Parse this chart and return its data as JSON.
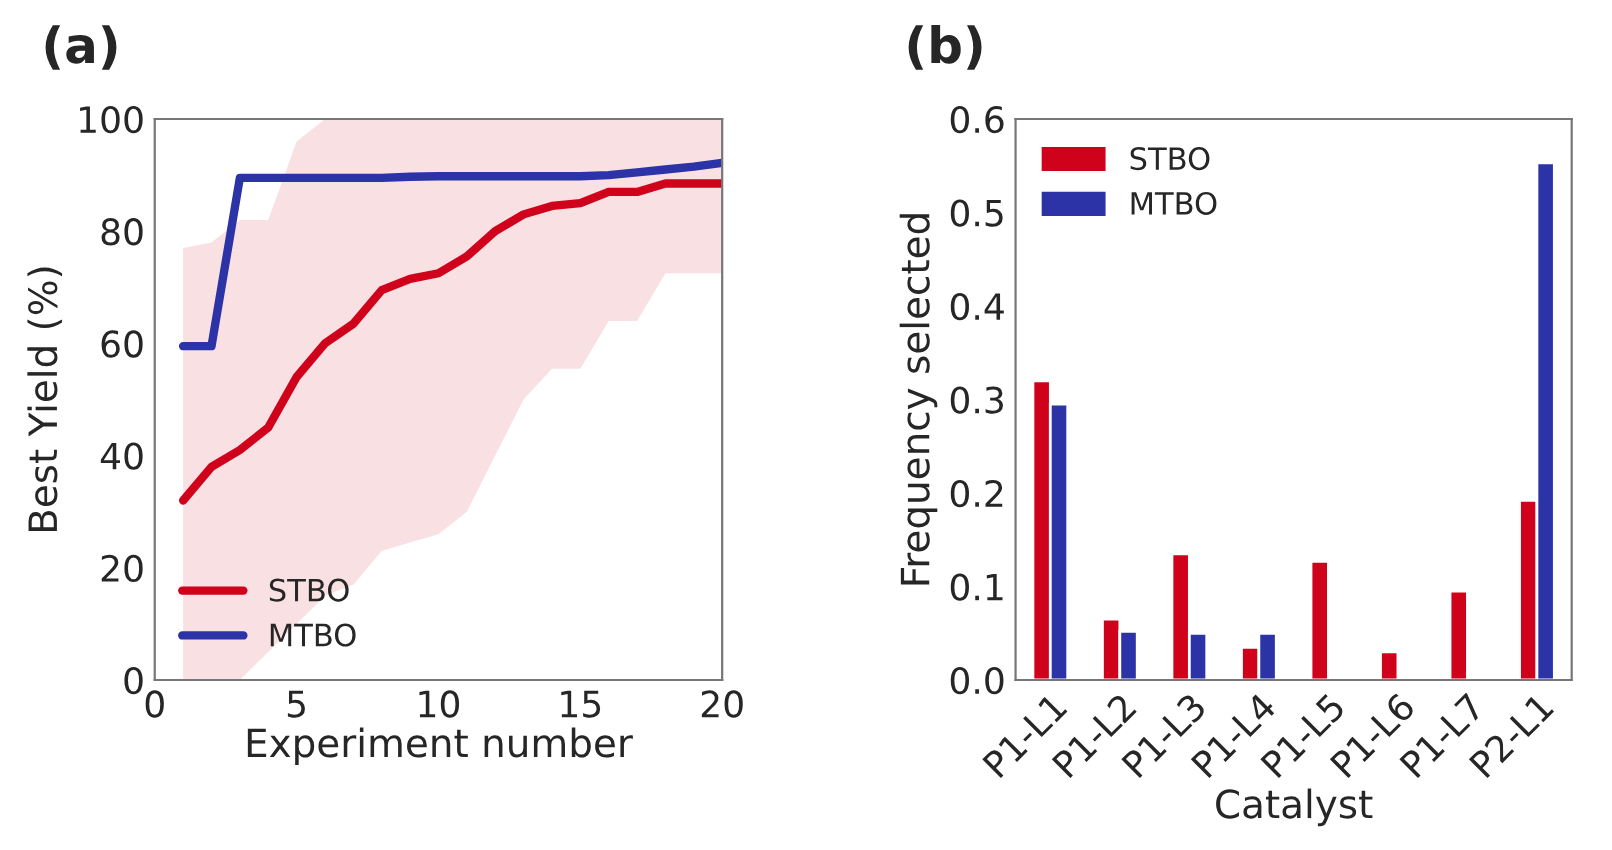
{
  "chart_data": [
    {
      "type": "line",
      "title": "(a)",
      "xlabel": "Experiment number",
      "ylabel": "Best Yield (%)",
      "x": [
        1,
        2,
        3,
        4,
        5,
        6,
        7,
        8,
        9,
        10,
        11,
        12,
        13,
        14,
        15,
        16,
        17,
        18,
        19,
        20
      ],
      "xlim": [
        0,
        20
      ],
      "ylim": [
        0,
        100
      ],
      "xticks": [
        0,
        5,
        10,
        15,
        20
      ],
      "yticks": [
        0,
        20,
        40,
        60,
        80,
        100
      ],
      "grid": false,
      "legend": "bottom left",
      "marker": "none",
      "line_style": "solid",
      "series": [
        {
          "name": "STBO",
          "color": "#d0021b",
          "values": [
            32,
            38,
            41,
            45,
            54,
            60,
            63.5,
            69.5,
            71.5,
            72.5,
            75.5,
            80,
            83,
            84.5,
            85,
            87,
            87,
            88.5,
            88.5,
            88.5
          ],
          "lower": [
            0,
            0,
            0,
            5,
            10,
            15,
            17,
            23,
            24.5,
            26,
            30,
            40,
            50,
            55.5,
            55.5,
            64,
            64,
            72.5,
            72.5,
            72.5
          ],
          "upper": [
            77,
            78,
            82,
            82,
            96,
            100,
            100,
            100,
            100,
            100,
            100,
            100,
            100,
            100,
            100,
            100,
            100,
            100,
            100,
            100
          ]
        },
        {
          "name": "MTBO",
          "color": "#2b33a6",
          "values": [
            59.5,
            59.5,
            89.5,
            89.5,
            89.5,
            89.5,
            89.5,
            89.5,
            89.7,
            89.8,
            89.8,
            89.8,
            89.8,
            89.8,
            89.8,
            90,
            90.5,
            91,
            91.5,
            92.2
          ]
        }
      ]
    },
    {
      "type": "bar",
      "title": "(b)",
      "xlabel": "Catalyst",
      "ylabel": "Frequency selected",
      "categories": [
        "P1-L1",
        "P1-L2",
        "P1-L3",
        "P1-L4",
        "P1-L5",
        "P1-L6",
        "P1-L7",
        "P2-L1"
      ],
      "ylim": [
        0,
        0.6
      ],
      "yticks": [
        {
          "value": 0,
          "label": "0.0"
        },
        0.1,
        0.2,
        0.3,
        0.4,
        0.5,
        0.6
      ],
      "grid": false,
      "legend": "top left",
      "series": [
        {
          "name": "STBO",
          "color": "#d0021b",
          "values": [
            0.32,
            0.065,
            0.135,
            0.035,
            0.127,
            0.03,
            0.095,
            0.192
          ]
        },
        {
          "name": "MTBO",
          "color": "#2b33a6",
          "values": [
            0.295,
            0.052,
            0.05,
            0.05,
            null,
            null,
            null,
            0.553
          ]
        }
      ]
    }
  ]
}
